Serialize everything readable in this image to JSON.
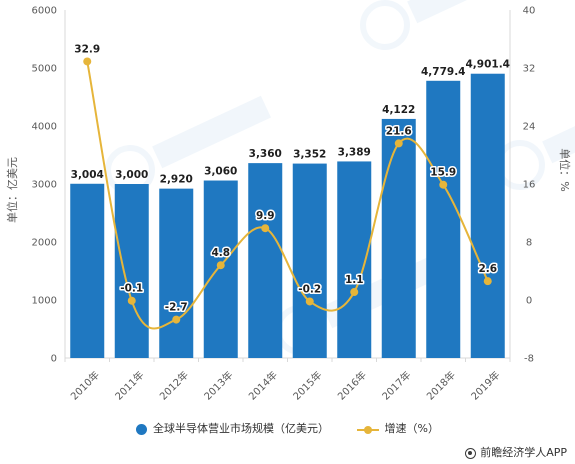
{
  "chart_data": {
    "type": "bar",
    "categories": [
      "2010年",
      "2011年",
      "2012年",
      "2013年",
      "2014年",
      "2015年",
      "2016年",
      "2017年",
      "2018年",
      "2019年"
    ],
    "series": [
      {
        "name": "全球半导体营业市场规模（亿美元）",
        "chart": "bar",
        "axis": "left",
        "color": "#1f78c1",
        "values": [
          3004,
          3000,
          2920,
          3060,
          3360,
          3352,
          3389,
          4122,
          4779.4,
          4901.4
        ],
        "labels": [
          "3,004",
          "3,000",
          "2,920",
          "3,060",
          "3,360",
          "3,352",
          "3,389",
          "4,122",
          "4,779.4",
          "4,901.4"
        ]
      },
      {
        "name": "增速（%）",
        "chart": "line",
        "axis": "right",
        "color": "#e6b53a",
        "values": [
          32.9,
          -0.1,
          -2.7,
          4.8,
          9.9,
          -0.2,
          1.1,
          21.6,
          15.9,
          2.6
        ],
        "labels": [
          "32.9",
          "-0.1",
          "-2.7",
          "4.8",
          "9.9",
          "-0.2",
          "1.1",
          "21.6",
          "15.9",
          "2.6"
        ]
      }
    ],
    "ylabel": "单位：亿美元",
    "ylabel_right": "单位：%",
    "ylim": [
      0,
      6000
    ],
    "yticks": [
      "0",
      "1000",
      "2000",
      "3000",
      "4000",
      "5000",
      "6000"
    ],
    "ylim_right": [
      -8,
      40
    ],
    "yticks_right": [
      "-8",
      "0",
      "8",
      "16",
      "24",
      "32",
      "40"
    ],
    "grid": false,
    "legend_position": "bottom"
  },
  "legend": [
    {
      "label": "全球半导体营业市场规模（亿美元）",
      "color": "#1f78c1",
      "kind": "bar"
    },
    {
      "label": "增速（%）",
      "color": "#e6b53a",
      "kind": "line"
    }
  ],
  "source": "前瞻经济学人APP"
}
